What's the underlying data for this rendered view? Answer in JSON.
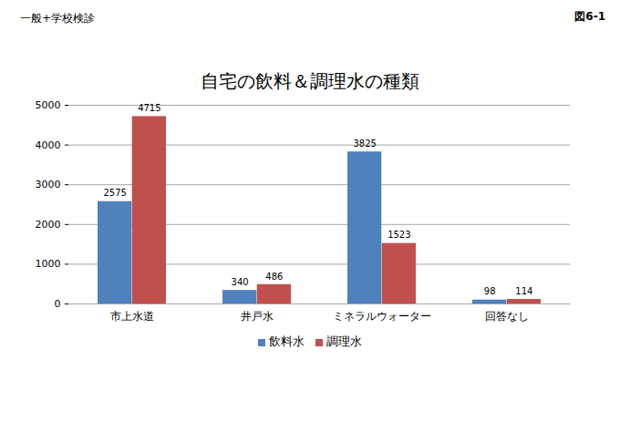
{
  "chart_data": {
    "type": "bar",
    "title": "自宅の飲料＆調理水の種類",
    "annotations": [
      "一般+学校検診",
      "図6-1"
    ],
    "categories": [
      "市上水道",
      "井戸水",
      "ミネラルウォーター",
      "回答なし"
    ],
    "series": [
      {
        "name": "飲料水",
        "color": "#4f81bd",
        "values": [
          2575,
          340,
          3825,
          98
        ]
      },
      {
        "name": "調理水",
        "color": "#c0504d",
        "values": [
          4715,
          486,
          1523,
          114
        ]
      }
    ],
    "ylim": [
      0,
      5000
    ],
    "yticks": [
      0,
      1000,
      2000,
      3000,
      4000,
      5000
    ],
    "grid": true,
    "legend": "bottom",
    "data_labels": true
  }
}
